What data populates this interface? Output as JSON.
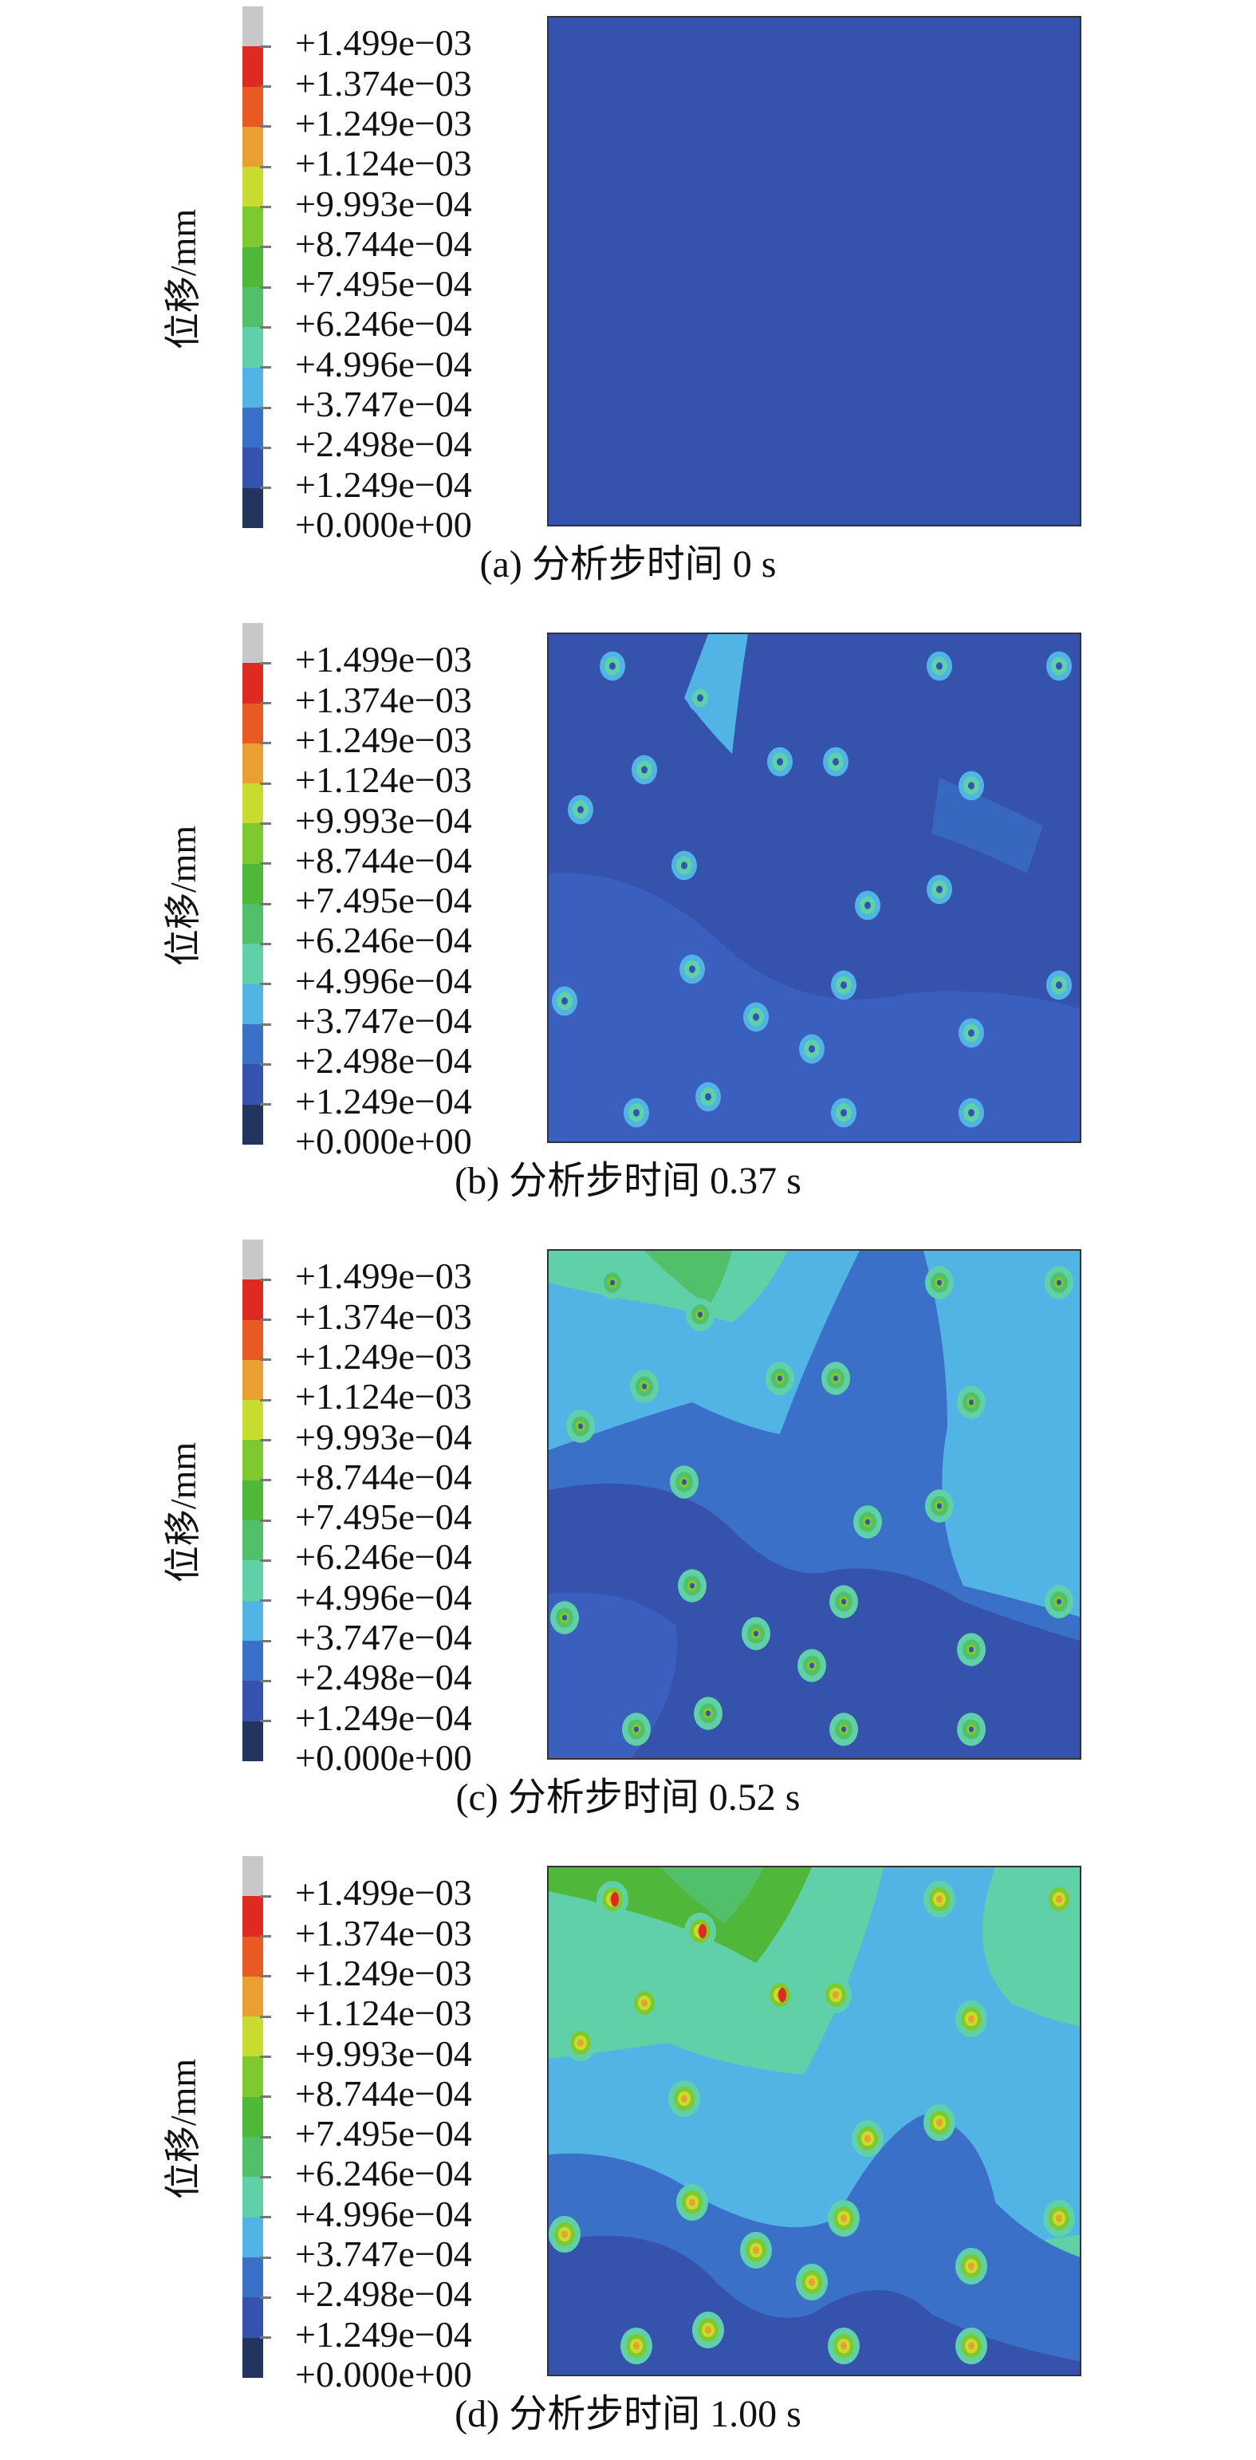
{
  "colors": {
    "scale": [
      "#c8c8c8",
      "#de2a20",
      "#e85a22",
      "#e8a030",
      "#c8dc30",
      "#7ec830",
      "#4fb83a",
      "#52c06a",
      "#5fd0a8",
      "#52b4e4",
      "#3a70c8",
      "#3552ad",
      "#23355f"
    ],
    "plot_background": "#3552ad"
  },
  "legend": {
    "axis_label": "位移/mm",
    "ticks": [
      "+1.499e−03",
      "+1.374e−03",
      "+1.249e−03",
      "+1.124e−03",
      "+9.993e−04",
      "+8.744e−04",
      "+7.495e−04",
      "+6.246e−04",
      "+4.996e−04",
      "+3.747e−04",
      "+2.498e−04",
      "+1.249e−04",
      "+0.000e+00"
    ]
  },
  "panels": [
    {
      "caption": "(a) 分析步时间 0 s",
      "time_s": 0
    },
    {
      "caption": "(b) 分析步时间 0.37 s",
      "time_s": 0.37
    },
    {
      "caption": "(c) 分析步时间 0.52 s",
      "time_s": 0.52
    },
    {
      "caption": "(d) 分析步时间 1.00 s",
      "time_s": 1.0
    }
  ]
}
